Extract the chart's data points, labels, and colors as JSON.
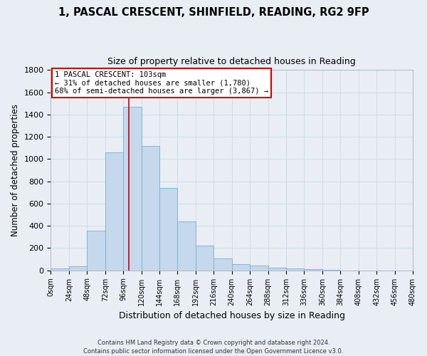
{
  "title": "1, PASCAL CRESCENT, SHINFIELD, READING, RG2 9FP",
  "subtitle": "Size of property relative to detached houses in Reading",
  "xlabel": "Distribution of detached houses by size in Reading",
  "ylabel": "Number of detached properties",
  "bin_edges": [
    0,
    24,
    48,
    72,
    96,
    120,
    144,
    168,
    192,
    216,
    240,
    264,
    288,
    312,
    336,
    360,
    384,
    408,
    432,
    456,
    480
  ],
  "bar_heights": [
    15,
    35,
    355,
    1060,
    1470,
    1120,
    740,
    440,
    225,
    110,
    55,
    45,
    25,
    15,
    10,
    5,
    0,
    0,
    0,
    0
  ],
  "bar_color": "#c5d8ec",
  "bar_edge_color": "#7aaed0",
  "red_line_x": 103,
  "annotation_title": "1 PASCAL CRESCENT: 103sqm",
  "annotation_line1": "← 31% of detached houses are smaller (1,780)",
  "annotation_line2": "68% of semi-detached houses are larger (3,867) →",
  "annotation_box_color": "#ffffff",
  "annotation_box_edge": "#cc0000",
  "red_line_color": "#cc0000",
  "ylim": [
    0,
    1800
  ],
  "yticks": [
    0,
    200,
    400,
    600,
    800,
    1000,
    1200,
    1400,
    1600,
    1800
  ],
  "footer_line1": "Contains HM Land Registry data © Crown copyright and database right 2024.",
  "footer_line2": "Contains public sector information licensed under the Open Government Licence v3.0.",
  "grid_color": "#d0dce8",
  "background_color": "#e8eef4"
}
